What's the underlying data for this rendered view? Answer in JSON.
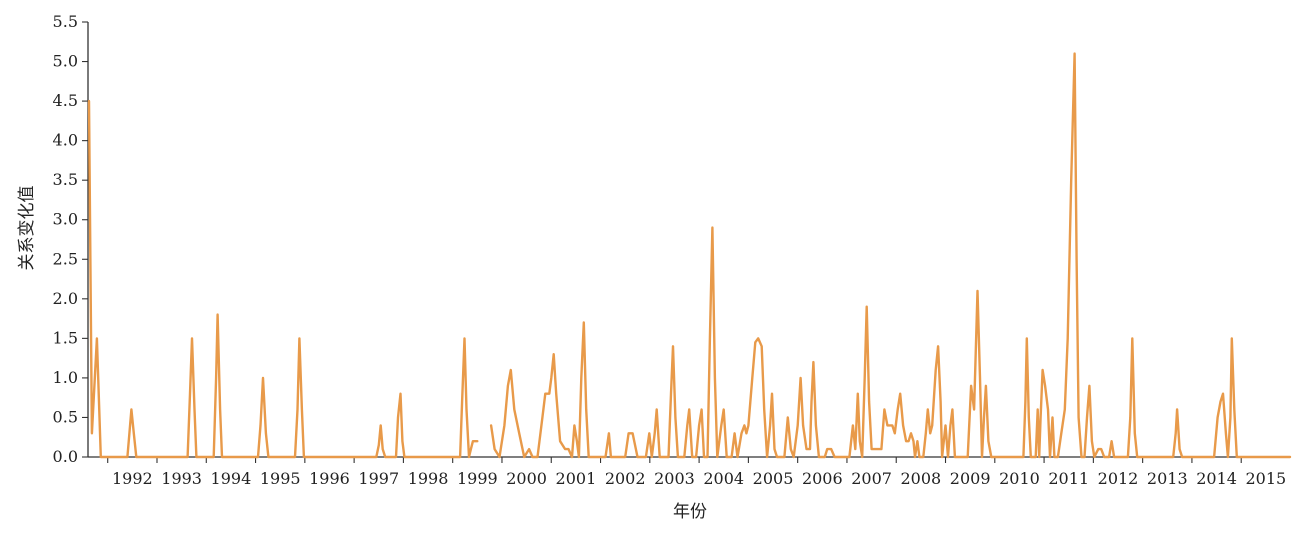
{
  "chart_data": {
    "type": "line",
    "title": "",
    "xlabel": "年份",
    "ylabel": "关系变化值",
    "ylim": [
      0,
      5.5
    ],
    "xlim": [
      1991.6,
      2015.99
    ],
    "yticks": [
      "0.0",
      "0.5",
      "1.0",
      "1.5",
      "2.0",
      "2.5",
      "3.0",
      "3.5",
      "4.0",
      "4.5",
      "5.0",
      "5.5"
    ],
    "year_ticks": [
      "1992",
      "1993",
      "1994",
      "1995",
      "1996",
      "1997",
      "1998",
      "1999",
      "2000",
      "2001",
      "2002",
      "2003",
      "2004",
      "2005",
      "2006",
      "2007",
      "2008",
      "2009",
      "2010",
      "2011",
      "2012",
      "2013",
      "2014",
      "2015"
    ],
    "grid": false,
    "legend": "none",
    "line_color": "#E89A4A",
    "series": [
      {
        "segments": [
          [
            [
              1991.62,
              4.5
            ],
            [
              1991.68,
              0.3
            ],
            [
              1991.78,
              1.5
            ],
            [
              1991.86,
              0.0
            ],
            [
              1992.2,
              0.0
            ],
            [
              1992.4,
              0.0
            ],
            [
              1992.44,
              0.3
            ],
            [
              1992.48,
              0.6
            ],
            [
              1992.53,
              0.3
            ],
            [
              1992.58,
              0.0
            ],
            [
              1993.5,
              0.0
            ],
            [
              1993.62,
              0.0
            ],
            [
              1993.67,
              0.8
            ],
            [
              1993.71,
              1.5
            ],
            [
              1993.76,
              0.6
            ],
            [
              1993.8,
              0.0
            ],
            [
              1994.15,
              0.0
            ],
            [
              1994.2,
              1.0
            ],
            [
              1994.23,
              1.8
            ],
            [
              1994.28,
              0.6
            ],
            [
              1994.32,
              0.0
            ],
            [
              1995.05,
              0.0
            ],
            [
              1995.1,
              0.4
            ],
            [
              1995.15,
              1.0
            ],
            [
              1995.21,
              0.3
            ],
            [
              1995.26,
              0.0
            ],
            [
              1995.8,
              0.0
            ],
            [
              1995.85,
              0.6
            ],
            [
              1995.89,
              1.5
            ],
            [
              1995.94,
              0.6
            ],
            [
              1995.98,
              0.0
            ],
            [
              1997.45,
              0.0
            ],
            [
              1997.5,
              0.15
            ],
            [
              1997.54,
              0.4
            ],
            [
              1997.58,
              0.1
            ],
            [
              1997.63,
              0.0
            ],
            [
              1997.85,
              0.0
            ],
            [
              1997.89,
              0.5
            ],
            [
              1997.94,
              0.8
            ],
            [
              1997.98,
              0.2
            ],
            [
              1998.02,
              0.0
            ],
            [
              1999.15,
              0.0
            ],
            [
              1999.19,
              0.7
            ],
            [
              1999.24,
              1.5
            ],
            [
              1999.28,
              0.6
            ],
            [
              1999.33,
              0.0
            ],
            [
              1999.37,
              0.1
            ],
            [
              1999.41,
              0.2
            ],
            [
              1999.5,
              0.2
            ]
          ],
          [
            [
              1999.78,
              0.4
            ],
            [
              1999.85,
              0.1
            ],
            [
              1999.95,
              0.0
            ],
            [
              2000.05,
              0.4
            ],
            [
              2000.12,
              0.9
            ],
            [
              2000.18,
              1.1
            ],
            [
              2000.25,
              0.6
            ],
            [
              2000.35,
              0.3
            ],
            [
              2000.45,
              0.0
            ],
            [
              2000.55,
              0.1
            ],
            [
              2000.62,
              0.0
            ],
            [
              2000.72,
              0.0
            ],
            [
              2000.82,
              0.5
            ],
            [
              2000.88,
              0.8
            ],
            [
              2000.96,
              0.8
            ],
            [
              2001.0,
              1.0
            ],
            [
              2001.05,
              1.3
            ],
            [
              2001.1,
              0.8
            ],
            [
              2001.18,
              0.2
            ],
            [
              2001.28,
              0.1
            ],
            [
              2001.35,
              0.1
            ],
            [
              2001.42,
              0.0
            ],
            [
              2001.47,
              0.4
            ],
            [
              2001.52,
              0.2
            ],
            [
              2001.56,
              0.0
            ],
            [
              2001.61,
              1.0
            ],
            [
              2001.66,
              1.7
            ],
            [
              2001.71,
              0.6
            ],
            [
              2001.76,
              0.0
            ],
            [
              2002.1,
              0.0
            ],
            [
              2002.17,
              0.3
            ],
            [
              2002.21,
              0.0
            ],
            [
              2002.5,
              0.0
            ],
            [
              2002.57,
              0.3
            ],
            [
              2002.65,
              0.3
            ],
            [
              2002.75,
              0.0
            ],
            [
              2002.92,
              0.0
            ],
            [
              2002.99,
              0.3
            ],
            [
              2003.04,
              0.0
            ],
            [
              2003.1,
              0.3
            ],
            [
              2003.14,
              0.6
            ],
            [
              2003.2,
              0.0
            ],
            [
              2003.38,
              0.0
            ],
            [
              2003.43,
              0.8
            ],
            [
              2003.47,
              1.4
            ],
            [
              2003.52,
              0.5
            ],
            [
              2003.57,
              0.0
            ],
            [
              2003.7,
              0.0
            ],
            [
              2003.76,
              0.4
            ],
            [
              2003.8,
              0.6
            ],
            [
              2003.86,
              0.0
            ],
            [
              2003.94,
              0.0
            ],
            [
              2004.0,
              0.4
            ],
            [
              2004.05,
              0.6
            ],
            [
              2004.1,
              0.0
            ],
            [
              2004.17,
              0.0
            ],
            [
              2004.22,
              1.5
            ],
            [
              2004.27,
              2.9
            ],
            [
              2004.32,
              1.0
            ],
            [
              2004.37,
              0.0
            ],
            [
              2004.45,
              0.4
            ],
            [
              2004.5,
              0.6
            ],
            [
              2004.56,
              0.0
            ],
            [
              2004.66,
              0.0
            ],
            [
              2004.72,
              0.3
            ],
            [
              2004.78,
              0.0
            ],
            [
              2004.86,
              0.3
            ],
            [
              2004.92,
              0.4
            ],
            [
              2004.96,
              0.3
            ],
            [
              2005.0,
              0.4
            ],
            [
              2005.08,
              1.0
            ],
            [
              2005.14,
              1.45
            ],
            [
              2005.2,
              1.5
            ],
            [
              2005.27,
              1.4
            ],
            [
              2005.32,
              0.6
            ],
            [
              2005.38,
              0.0
            ],
            [
              2005.44,
              0.4
            ],
            [
              2005.48,
              0.8
            ],
            [
              2005.53,
              0.1
            ],
            [
              2005.58,
              0.0
            ],
            [
              2005.73,
              0.0
            ],
            [
              2005.8,
              0.5
            ],
            [
              2005.86,
              0.1
            ],
            [
              2005.92,
              0.0
            ],
            [
              2006.0,
              0.4
            ],
            [
              2006.06,
              1.0
            ],
            [
              2006.11,
              0.4
            ],
            [
              2006.18,
              0.1
            ],
            [
              2006.25,
              0.1
            ],
            [
              2006.28,
              0.7
            ],
            [
              2006.32,
              1.2
            ],
            [
              2006.37,
              0.4
            ],
            [
              2006.43,
              0.0
            ],
            [
              2006.55,
              0.0
            ],
            [
              2006.6,
              0.1
            ],
            [
              2006.68,
              0.1
            ],
            [
              2006.75,
              0.0
            ],
            [
              2007.0,
              0.0
            ],
            [
              2007.05,
              0.0
            ],
            [
              2007.12,
              0.4
            ],
            [
              2007.17,
              0.1
            ],
            [
              2007.22,
              0.8
            ],
            [
              2007.26,
              0.2
            ],
            [
              2007.31,
              0.0
            ],
            [
              2007.36,
              1.0
            ],
            [
              2007.4,
              1.9
            ],
            [
              2007.45,
              0.7
            ],
            [
              2007.5,
              0.1
            ],
            [
              2007.7,
              0.1
            ],
            [
              2007.76,
              0.6
            ],
            [
              2007.82,
              0.4
            ],
            [
              2007.92,
              0.4
            ],
            [
              2007.97,
              0.3
            ],
            [
              2008.03,
              0.6
            ],
            [
              2008.08,
              0.8
            ],
            [
              2008.14,
              0.4
            ],
            [
              2008.2,
              0.2
            ],
            [
              2008.25,
              0.2
            ],
            [
              2008.3,
              0.3
            ],
            [
              2008.35,
              0.2
            ],
            [
              2008.38,
              0.0
            ],
            [
              2008.43,
              0.2
            ],
            [
              2008.47,
              0.0
            ],
            [
              2008.55,
              0.0
            ],
            [
              2008.6,
              0.3
            ],
            [
              2008.64,
              0.6
            ],
            [
              2008.69,
              0.3
            ],
            [
              2008.73,
              0.4
            ],
            [
              2008.8,
              1.1
            ],
            [
              2008.85,
              1.4
            ],
            [
              2008.9,
              0.7
            ],
            [
              2008.93,
              0.0
            ],
            [
              2009.0,
              0.4
            ],
            [
              2009.05,
              0.0
            ],
            [
              2009.1,
              0.4
            ],
            [
              2009.14,
              0.6
            ],
            [
              2009.19,
              0.0
            ],
            [
              2009.45,
              0.0
            ],
            [
              2009.52,
              0.9
            ],
            [
              2009.58,
              0.6
            ],
            [
              2009.65,
              2.1
            ],
            [
              2009.7,
              1.0
            ],
            [
              2009.74,
              0.0
            ],
            [
              2009.78,
              0.5
            ],
            [
              2009.82,
              0.9
            ],
            [
              2009.87,
              0.2
            ],
            [
              2009.93,
              0.0
            ],
            [
              2010.58,
              0.0
            ],
            [
              2010.62,
              0.7
            ],
            [
              2010.65,
              1.5
            ],
            [
              2010.69,
              0.5
            ],
            [
              2010.73,
              0.0
            ],
            [
              2010.83,
              0.0
            ],
            [
              2010.87,
              0.6
            ],
            [
              2010.9,
              0.0
            ],
            [
              2010.93,
              0.5
            ],
            [
              2010.97,
              1.1
            ],
            [
              2011.02,
              0.9
            ],
            [
              2011.08,
              0.6
            ],
            [
              2011.12,
              0.0
            ],
            [
              2011.17,
              0.5
            ],
            [
              2011.21,
              0.0
            ],
            [
              2011.28,
              0.0
            ],
            [
              2011.35,
              0.3
            ],
            [
              2011.42,
              0.6
            ],
            [
              2011.48,
              1.5
            ],
            [
              2011.55,
              3.5
            ],
            [
              2011.62,
              5.1
            ],
            [
              2011.66,
              2.5
            ],
            [
              2011.7,
              0.5
            ],
            [
              2011.76,
              0.0
            ],
            [
              2011.82,
              0.0
            ],
            [
              2011.87,
              0.5
            ],
            [
              2011.92,
              0.9
            ],
            [
              2011.97,
              0.2
            ],
            [
              2012.02,
              0.0
            ],
            [
              2012.1,
              0.1
            ],
            [
              2012.16,
              0.1
            ],
            [
              2012.22,
              0.0
            ],
            [
              2012.32,
              0.0
            ],
            [
              2012.37,
              0.2
            ],
            [
              2012.42,
              0.0
            ],
            [
              2012.5,
              0.0
            ],
            [
              2012.7,
              0.0
            ],
            [
              2012.75,
              0.5
            ],
            [
              2012.79,
              1.5
            ],
            [
              2012.84,
              0.3
            ],
            [
              2012.89,
              0.0
            ],
            [
              2013.62,
              0.0
            ],
            [
              2013.67,
              0.3
            ],
            [
              2013.7,
              0.6
            ],
            [
              2013.75,
              0.1
            ],
            [
              2013.8,
              0.0
            ],
            [
              2014.45,
              0.0
            ],
            [
              2014.52,
              0.5
            ],
            [
              2014.58,
              0.7
            ],
            [
              2014.63,
              0.8
            ],
            [
              2014.69,
              0.3
            ],
            [
              2014.73,
              0.0
            ],
            [
              2014.78,
              0.5
            ],
            [
              2014.81,
              1.5
            ],
            [
              2014.86,
              0.6
            ],
            [
              2014.91,
              0.0
            ],
            [
              2015.99,
              0.0
            ]
          ]
        ]
      }
    ]
  }
}
